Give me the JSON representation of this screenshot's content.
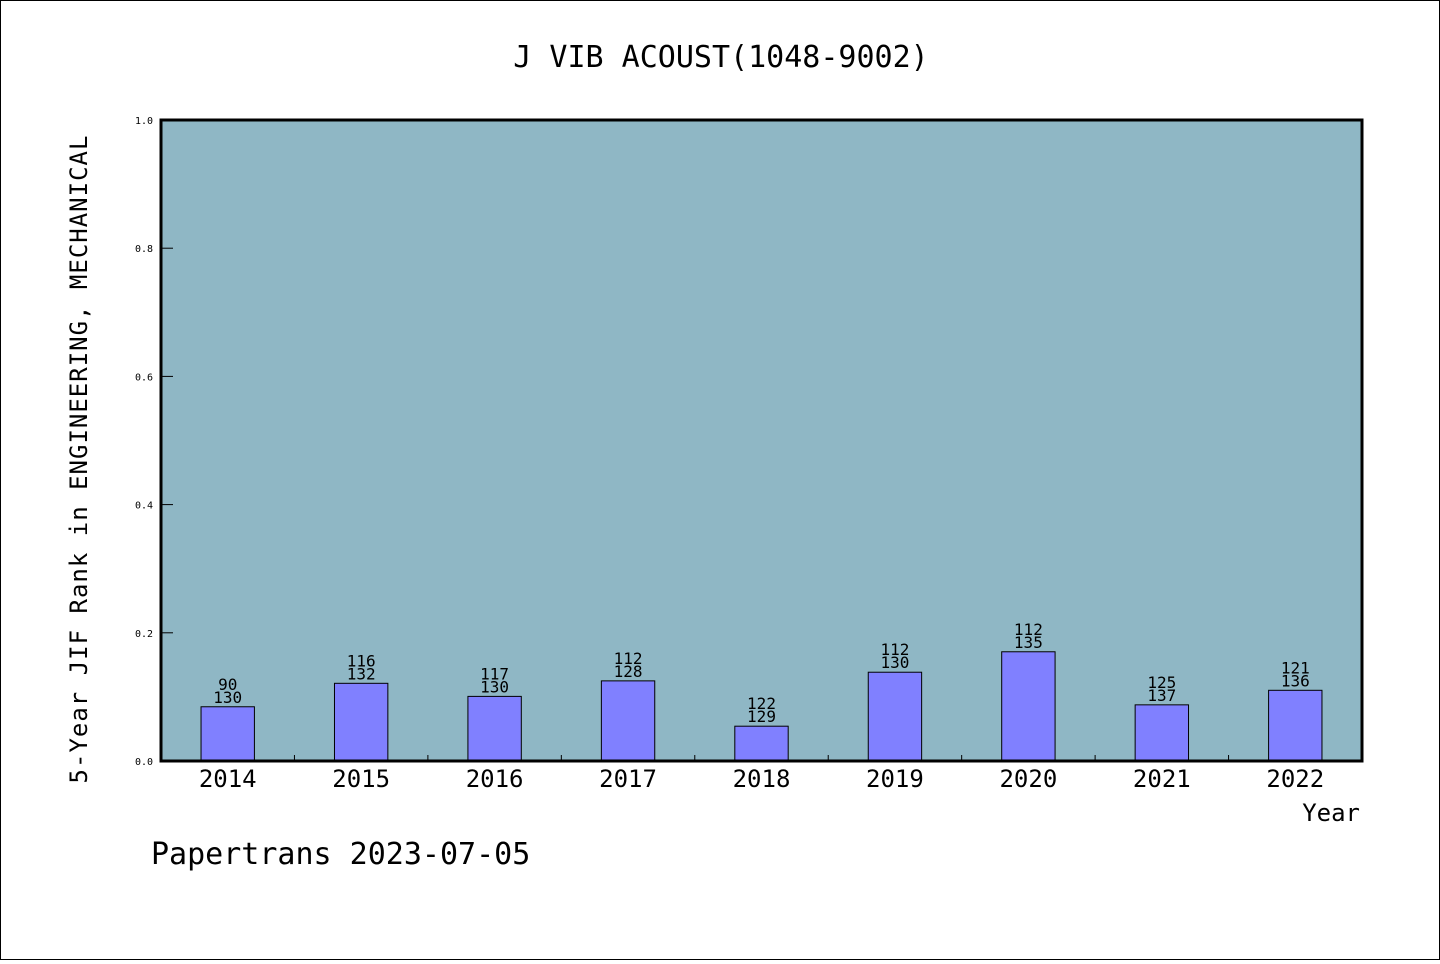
{
  "chart_data": {
    "type": "bar",
    "title": "J VIB ACOUST(1048-9002)",
    "xlabel": "Year",
    "ylabel": "5-Year JIF Rank in ENGINEERING, MECHANICAL",
    "categories": [
      "2014",
      "2015",
      "2016",
      "2017",
      "2018",
      "2019",
      "2020",
      "2021",
      "2022"
    ],
    "values": [
      0.0846,
      0.1212,
      0.1008,
      0.125,
      0.0543,
      0.1385,
      0.1704,
      0.0876,
      0.1103
    ],
    "ranks": [
      "90",
      "116",
      "117",
      "112",
      "122",
      "112",
      "112",
      "125",
      "121"
    ],
    "totals": [
      "130",
      "132",
      "130",
      "128",
      "129",
      "130",
      "135",
      "137",
      "136"
    ],
    "ylim": [
      0,
      1.0
    ],
    "yticks": [
      "0.0",
      "0.2",
      "0.4",
      "0.6",
      "0.8",
      "1.0"
    ],
    "grid": false,
    "legend": "none",
    "colors": {
      "plot_background": "#8fb7c5",
      "bar_fill": "#8080ff",
      "bar_stroke": "#000000"
    }
  },
  "footer": "Papertrans 2023-07-05"
}
